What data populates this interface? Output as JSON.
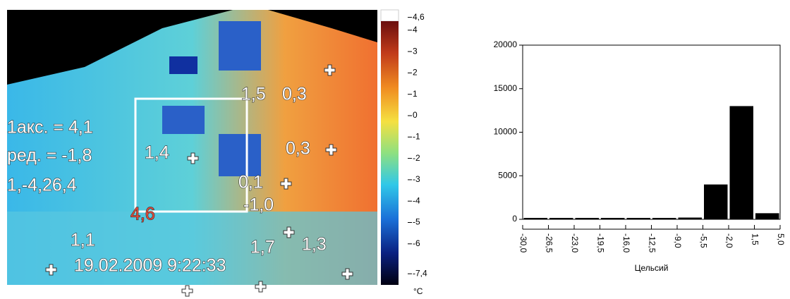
{
  "thermal_image": {
    "labels": [
      "1акс. = 4,1",
      "ред. = -1,8",
      "1,4",
      "1,5",
      "0,3",
      "0,3",
      "0,1",
      "-1,0",
      "4,6",
      "1,1",
      "1,7",
      "1,3",
      "1,-4,26,4",
      "19.02.2009 9:22:33"
    ],
    "colorbar": {
      "ticks": [
        {
          "value": 4.6,
          "label": "4,6"
        },
        4,
        3,
        2,
        1,
        0,
        -1,
        -2,
        -3,
        -4,
        -5,
        -6,
        {
          "value": -7.4,
          "label": "-7,4"
        }
      ],
      "unit": "°C"
    }
  },
  "chart_data": {
    "type": "histogram",
    "x_label": "Цельсий",
    "bins": [
      -30,
      -26.5,
      -23,
      -19.5,
      -16,
      -12.5,
      -9,
      -5.5,
      -2,
      1.5,
      5
    ],
    "values": [
      50,
      50,
      50,
      50,
      50,
      50,
      200,
      4000,
      13000,
      700
    ],
    "color": "#000000",
    "xlim": [
      -30,
      5
    ],
    "xticks": [
      {
        "value": -30,
        "label": "-30,0"
      },
      {
        "value": -26.5,
        "label": "-26,5"
      },
      {
        "value": -23,
        "label": "-23,0"
      },
      {
        "value": -19.5,
        "label": "-19,5"
      },
      {
        "value": -16,
        "label": "-16,0"
      },
      {
        "value": -12.5,
        "label": "-12,5"
      },
      {
        "value": -9,
        "label": "-9,0"
      },
      {
        "value": -5.5,
        "label": "-5,5"
      },
      {
        "value": -2,
        "label": "-2,0"
      },
      {
        "value": 1.5,
        "label": "1,5"
      },
      {
        "value": 5,
        "label": "5,0"
      }
    ],
    "ylim": [
      0,
      20000
    ],
    "yticks": [
      0,
      5000,
      10000,
      15000,
      20000
    ]
  }
}
